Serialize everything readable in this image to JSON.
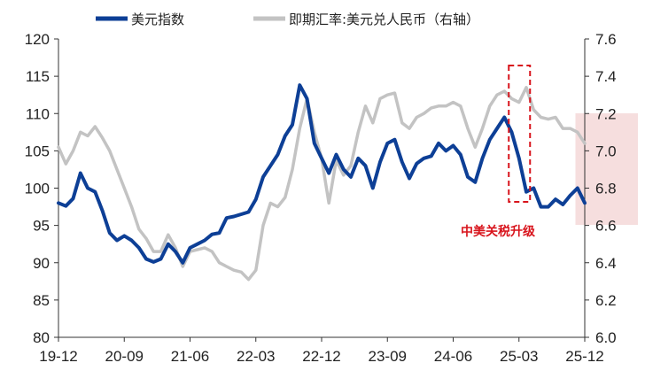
{
  "chart_data": {
    "type": "line",
    "x_ticks": [
      "19-12",
      "20-09",
      "21-06",
      "22-03",
      "22-12",
      "23-09",
      "24-06",
      "25-03",
      "25-12"
    ],
    "left_axis": {
      "ylim": [
        80,
        120
      ],
      "ticks": [
        "80",
        "85",
        "90",
        "95",
        "100",
        "105",
        "110",
        "115",
        "120"
      ]
    },
    "right_axis": {
      "ylim": [
        6.0,
        7.6
      ],
      "ticks": [
        "6.0",
        "6.2",
        "6.4",
        "6.6",
        "6.8",
        "7.0",
        "7.2",
        "7.4",
        "7.6"
      ]
    },
    "series": [
      {
        "name": "美元指数",
        "axis": "left",
        "color": "#0d3f96",
        "points": [
          [
            "19-12",
            98.0
          ],
          [
            "20-01",
            97.6
          ],
          [
            "20-02",
            98.6
          ],
          [
            "20-03",
            102.0
          ],
          [
            "20-04",
            100.0
          ],
          [
            "20-05",
            99.5
          ],
          [
            "20-06",
            97.0
          ],
          [
            "20-07",
            94.0
          ],
          [
            "20-08",
            93.0
          ],
          [
            "20-09",
            93.6
          ],
          [
            "20-10",
            93.0
          ],
          [
            "20-11",
            92.0
          ],
          [
            "20-12",
            90.5
          ],
          [
            "21-01",
            90.1
          ],
          [
            "21-02",
            90.5
          ],
          [
            "21-03",
            92.5
          ],
          [
            "21-04",
            91.5
          ],
          [
            "21-05",
            90.0
          ],
          [
            "21-06",
            92.0
          ],
          [
            "21-07",
            92.5
          ],
          [
            "21-08",
            93.0
          ],
          [
            "21-09",
            93.8
          ],
          [
            "21-10",
            94.0
          ],
          [
            "21-11",
            96.0
          ],
          [
            "21-12",
            96.2
          ],
          [
            "22-01",
            96.5
          ],
          [
            "22-02",
            96.8
          ],
          [
            "22-03",
            98.5
          ],
          [
            "22-04",
            101.5
          ],
          [
            "22-05",
            103.0
          ],
          [
            "22-06",
            104.5
          ],
          [
            "22-07",
            107.0
          ],
          [
            "22-08",
            108.5
          ],
          [
            "22-09",
            113.8
          ],
          [
            "22-10",
            112.0
          ],
          [
            "22-11",
            106.0
          ],
          [
            "22-12",
            104.0
          ],
          [
            "23-01",
            102.0
          ],
          [
            "23-02",
            104.5
          ],
          [
            "23-03",
            102.5
          ],
          [
            "23-04",
            101.5
          ],
          [
            "23-05",
            104.0
          ],
          [
            "23-06",
            103.0
          ],
          [
            "23-07",
            100.0
          ],
          [
            "23-08",
            103.5
          ],
          [
            "23-09",
            106.0
          ],
          [
            "23-10",
            106.5
          ],
          [
            "23-11",
            103.5
          ],
          [
            "23-12",
            101.3
          ],
          [
            "24-01",
            103.3
          ],
          [
            "24-02",
            104.0
          ],
          [
            "24-03",
            104.3
          ],
          [
            "24-04",
            106.0
          ],
          [
            "24-05",
            105.0
          ],
          [
            "24-06",
            105.7
          ],
          [
            "24-07",
            104.5
          ],
          [
            "24-08",
            101.5
          ],
          [
            "24-09",
            100.8
          ],
          [
            "24-10",
            104.0
          ],
          [
            "24-11",
            106.5
          ],
          [
            "24-12",
            108.0
          ],
          [
            "25-01",
            109.5
          ],
          [
            "25-02",
            107.5
          ],
          [
            "25-03",
            104.0
          ],
          [
            "25-04",
            99.5
          ],
          [
            "25-05",
            100.0
          ],
          [
            "25-06",
            97.5
          ],
          [
            "25-07",
            97.5
          ],
          [
            "25-08",
            98.5
          ],
          [
            "25-09",
            97.8
          ],
          [
            "25-10",
            99.0
          ],
          [
            "25-11",
            100.0
          ],
          [
            "25-12",
            98.0
          ]
        ]
      },
      {
        "name": "即期汇率:美元兑人民币（右轴）",
        "axis": "right",
        "color": "#c3c3c3",
        "points": [
          [
            "19-12",
            7.02
          ],
          [
            "20-01",
            6.93
          ],
          [
            "20-02",
            7.0
          ],
          [
            "20-03",
            7.1
          ],
          [
            "20-04",
            7.08
          ],
          [
            "20-05",
            7.13
          ],
          [
            "20-06",
            7.07
          ],
          [
            "20-07",
            7.0
          ],
          [
            "20-08",
            6.9
          ],
          [
            "20-09",
            6.8
          ],
          [
            "20-10",
            6.7
          ],
          [
            "20-11",
            6.58
          ],
          [
            "20-12",
            6.53
          ],
          [
            "21-01",
            6.46
          ],
          [
            "21-02",
            6.46
          ],
          [
            "21-03",
            6.55
          ],
          [
            "21-04",
            6.48
          ],
          [
            "21-05",
            6.38
          ],
          [
            "21-06",
            6.46
          ],
          [
            "21-07",
            6.47
          ],
          [
            "21-08",
            6.48
          ],
          [
            "21-09",
            6.46
          ],
          [
            "21-10",
            6.4
          ],
          [
            "21-11",
            6.38
          ],
          [
            "21-12",
            6.36
          ],
          [
            "22-01",
            6.35
          ],
          [
            "22-02",
            6.31
          ],
          [
            "22-03",
            6.36
          ],
          [
            "22-04",
            6.6
          ],
          [
            "22-05",
            6.72
          ],
          [
            "22-06",
            6.7
          ],
          [
            "22-07",
            6.75
          ],
          [
            "22-08",
            6.9
          ],
          [
            "22-09",
            7.12
          ],
          [
            "22-10",
            7.28
          ],
          [
            "22-11",
            7.1
          ],
          [
            "22-12",
            6.96
          ],
          [
            "23-01",
            6.72
          ],
          [
            "23-02",
            6.95
          ],
          [
            "23-03",
            6.87
          ],
          [
            "23-04",
            6.92
          ],
          [
            "23-05",
            7.1
          ],
          [
            "23-06",
            7.24
          ],
          [
            "23-07",
            7.15
          ],
          [
            "23-08",
            7.28
          ],
          [
            "23-09",
            7.3
          ],
          [
            "23-10",
            7.31
          ],
          [
            "23-11",
            7.15
          ],
          [
            "23-12",
            7.12
          ],
          [
            "24-01",
            7.18
          ],
          [
            "24-02",
            7.2
          ],
          [
            "24-03",
            7.23
          ],
          [
            "24-04",
            7.24
          ],
          [
            "24-05",
            7.24
          ],
          [
            "24-06",
            7.26
          ],
          [
            "24-07",
            7.24
          ],
          [
            "24-08",
            7.12
          ],
          [
            "24-09",
            7.02
          ],
          [
            "24-10",
            7.12
          ],
          [
            "24-11",
            7.24
          ],
          [
            "24-12",
            7.3
          ],
          [
            "25-01",
            7.32
          ],
          [
            "25-02",
            7.28
          ],
          [
            "25-03",
            7.26
          ],
          [
            "25-04",
            7.34
          ],
          [
            "25-05",
            7.22
          ],
          [
            "25-06",
            7.18
          ],
          [
            "25-07",
            7.17
          ],
          [
            "25-08",
            7.18
          ],
          [
            "25-09",
            7.12
          ],
          [
            "25-10",
            7.12
          ],
          [
            "25-11",
            7.1
          ],
          [
            "25-12",
            7.04
          ]
        ]
      }
    ],
    "annotations": [
      {
        "text": "中美关税升级",
        "color": "#d8141c",
        "shape": "dashed-rectangle",
        "x_range": [
          "25-01",
          "25-05"
        ]
      }
    ],
    "highlight": {
      "color": "#f6dede",
      "x_range": [
        "25-10",
        "25-12"
      ]
    },
    "grid": false,
    "legend_position": "top"
  }
}
